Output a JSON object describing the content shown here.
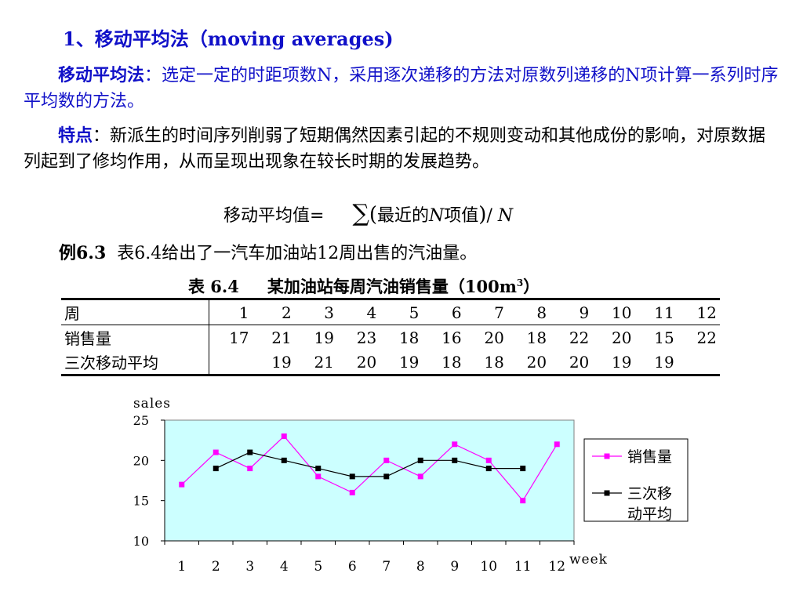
{
  "heading": "1、移动平均法（moving averages)",
  "definition": {
    "label": "移动平均法",
    "colon": "：",
    "text": "选定一定的时距项数N，采用逐次递移的方法对原数列递移的N项计算一系列时序平均数的方法。"
  },
  "features": {
    "label": "特点",
    "colon": "：",
    "text": "新派生的时间序列削弱了短期偶然因素引起的不规则变动和其他成份的影响，对原数据列起到了修均作用，从而呈现出现象在较长时期的发展趋势。"
  },
  "formula": {
    "lhs": "移动平均值=",
    "sigma": "∑",
    "open": "(",
    "inner": "最近的",
    "n": "N",
    "inner2": "项值",
    "close": ")",
    "divide": "/ ",
    "n2": "N"
  },
  "example": {
    "label": "例6.3",
    "text": "表6.4给出了一汽车加油站12周出售的汽油量。"
  },
  "table": {
    "caption_no": "表 6.4",
    "caption_title": "某加油站每周汽油销售量（100m",
    "caption_sup": "3",
    "caption_close": "）",
    "rows": [
      {
        "label": "周",
        "cells": [
          "1",
          "2",
          "3",
          "4",
          "5",
          "6",
          "7",
          "8",
          "9",
          "10",
          "11",
          "12"
        ]
      },
      {
        "label": "销售量",
        "cells": [
          "17",
          "21",
          "19",
          "23",
          "18",
          "16",
          "20",
          "18",
          "22",
          "20",
          "15",
          "22"
        ]
      },
      {
        "label": "三次移动平均",
        "cells": [
          "",
          "19",
          "21",
          "20",
          "19",
          "18",
          "18",
          "20",
          "20",
          "19",
          "19",
          ""
        ]
      }
    ]
  },
  "chart_data": {
    "type": "line",
    "ylabel": "sales",
    "xlabel": "week",
    "x": [
      1,
      2,
      3,
      4,
      5,
      6,
      7,
      8,
      9,
      10,
      11,
      12
    ],
    "ylim": [
      10,
      25
    ],
    "yticks": [
      10,
      15,
      20,
      25
    ],
    "plot_bg": "#ccffff",
    "legend_position": "right",
    "series": [
      {
        "name": "销售量",
        "name_lines": [
          "销售量"
        ],
        "color": "#ff00ff",
        "values": [
          17,
          21,
          19,
          23,
          18,
          16,
          20,
          18,
          22,
          20,
          15,
          22
        ]
      },
      {
        "name": "三次移动平均",
        "name_lines": [
          "三次移",
          "动平均"
        ],
        "color": "#000000",
        "values": [
          null,
          19,
          21,
          20,
          19,
          18,
          18,
          20,
          20,
          19,
          19,
          null
        ]
      }
    ]
  }
}
